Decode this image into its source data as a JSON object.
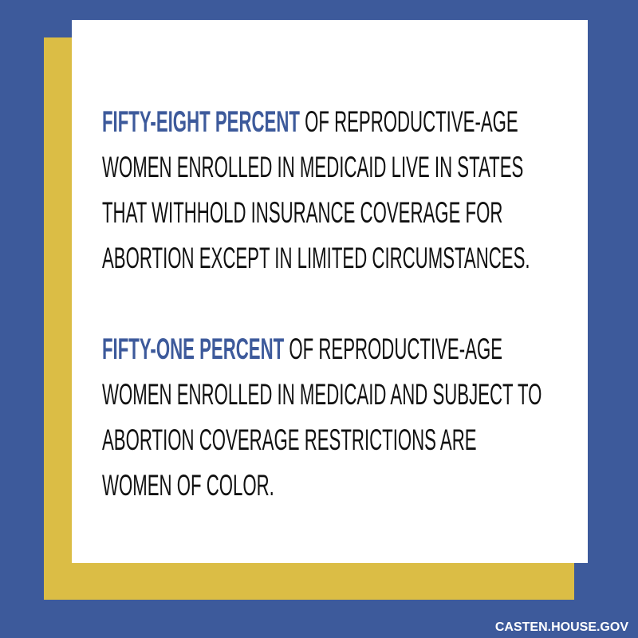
{
  "paragraphs": [
    {
      "highlight": "FIFTY-EIGHT PERCENT",
      "text": "OF REPRODUCTIVE-AGE WOMEN ENROLLED IN MEDICAID LIVE IN STATES THAT WITHHOLD INSURANCE COVERAGE FOR ABORTION EXCEPT IN LIMITED CIRCUMSTANCES."
    },
    {
      "highlight": "FIFTY-ONE PERCENT",
      "text": "OF REPRODUCTIVE-AGE WOMEN ENROLLED IN MEDICAID AND SUBJECT TO ABORTION COVERAGE RESTRICTIONS ARE WOMEN OF COLOR."
    }
  ],
  "footer": "CASTEN.HOUSE.GOV"
}
